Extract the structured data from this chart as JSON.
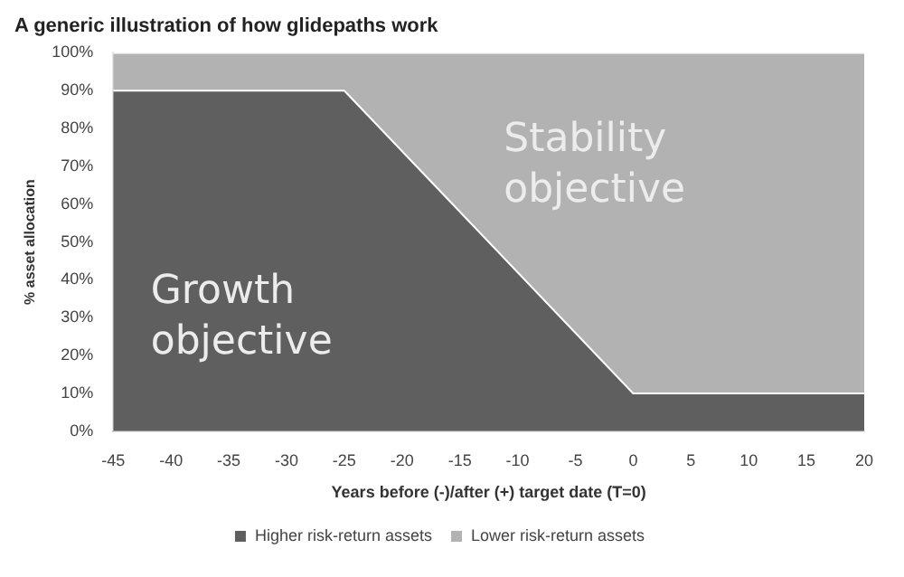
{
  "chart_data": {
    "type": "area",
    "title": "A generic illustration of how glidepaths work",
    "xlabel": "Years before (-)/after (+) target date (T=0)",
    "ylabel": "% asset allocation",
    "x": [
      -45,
      -25,
      0,
      20
    ],
    "stacked": true,
    "series": [
      {
        "name": "Higher risk-return assets",
        "color": "#5f5f5f",
        "values": [
          90,
          90,
          10,
          10
        ]
      },
      {
        "name": "Lower risk-return assets",
        "color": "#b2b2b2",
        "values": [
          10,
          10,
          90,
          90
        ]
      }
    ],
    "xlim": [
      -45,
      20
    ],
    "xticks": [
      -45,
      -40,
      -35,
      -30,
      -25,
      -20,
      -15,
      -10,
      -5,
      0,
      5,
      10,
      15,
      20
    ],
    "ylim": [
      0,
      100
    ],
    "yticks": [
      {
        "value": 0,
        "label": "0%"
      },
      {
        "value": 10,
        "label": "10%"
      },
      {
        "value": 20,
        "label": "20%"
      },
      {
        "value": 30,
        "label": "30%"
      },
      {
        "value": 40,
        "label": "40%"
      },
      {
        "value": 50,
        "label": "50%"
      },
      {
        "value": 60,
        "label": "60%"
      },
      {
        "value": 70,
        "label": "70%"
      },
      {
        "value": 80,
        "label": "80%"
      },
      {
        "value": 90,
        "label": "90%"
      },
      {
        "value": 100,
        "label": "100%"
      }
    ],
    "legend": "bottom",
    "grid": false,
    "annotations": [
      "Growth objective",
      "Stability objective"
    ]
  }
}
